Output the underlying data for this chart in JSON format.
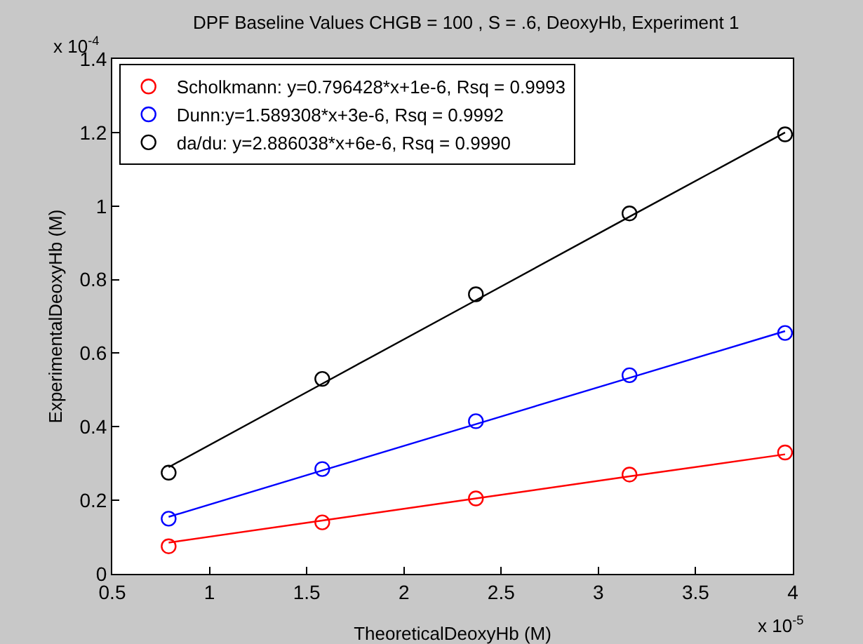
{
  "chart_data": {
    "type": "scatter",
    "title": "DPF Baseline Values CHGB = 100 , S = .6, DeoxyHb, Experiment 1",
    "xlabel": "TheoreticalDeoxyHb (M)",
    "ylabel": "ExperimentalDeoxyHb (M)",
    "x": [
      0.79,
      1.58,
      2.37,
      3.16,
      3.96
    ],
    "series": [
      {
        "name": "Scholkmann: y=0.796428*x+1e-6, Rsq = 0.9993",
        "color": "#ff0000",
        "values": [
          0.075,
          0.14,
          0.205,
          0.27,
          0.33
        ]
      },
      {
        "name": "Dunn:y=1.589308*x+3e-6, Rsq = 0.9992",
        "color": "#0000ff",
        "values": [
          0.15,
          0.285,
          0.415,
          0.54,
          0.655
        ]
      },
      {
        "name": "da/du: y=2.886038*x+6e-6, Rsq = 0.9990",
        "color": "#000000",
        "values": [
          0.275,
          0.53,
          0.76,
          0.98,
          1.195
        ]
      },
      {
        "type": "line",
        "marker": "none",
        "color": "#ff0000",
        "values": [
          0.085,
          0.145,
          0.205,
          0.265,
          0.325
        ]
      },
      {
        "type": "line",
        "marker": "none",
        "color": "#0000ff",
        "values": [
          0.155,
          0.281,
          0.407,
          0.533,
          0.66
        ]
      },
      {
        "type": "line",
        "marker": "none",
        "color": "#000000",
        "values": [
          0.29,
          0.517,
          0.744,
          0.971,
          1.2
        ]
      }
    ],
    "xlim": [
      0.5,
      4
    ],
    "xticks": [
      0.5,
      1,
      1.5,
      2,
      2.5,
      3,
      3.5,
      4
    ],
    "ylim": [
      0,
      1.4
    ],
    "yticks": [
      0,
      0.2,
      0.4,
      0.6,
      0.8,
      1,
      1.2,
      1.4
    ],
    "annotations": [
      "x 10$^{-4}$",
      "x 10$^{-5}$"
    ],
    "grid": false,
    "legend": "top left",
    "marker": "circle",
    "line_style": "solid"
  }
}
